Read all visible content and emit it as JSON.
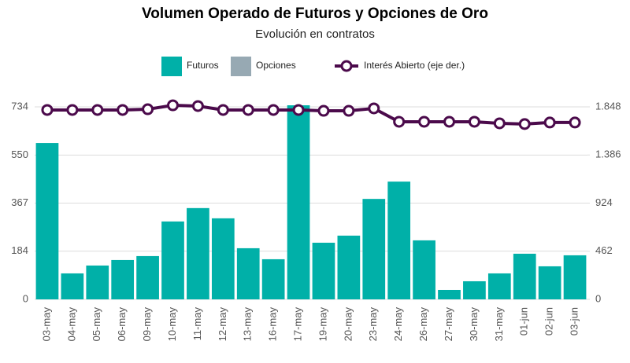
{
  "chart_data": {
    "type": "bar_line",
    "title": "Volumen Operado de Futuros y Opciones de Oro",
    "subtitle": "Evolución en contratos",
    "categories": [
      "03-may",
      "04-may",
      "05-may",
      "06-may",
      "09-may",
      "10-may",
      "11-may",
      "12-may",
      "13-may",
      "16-may",
      "17-may",
      "19-may",
      "20-may",
      "23-may",
      "24-may",
      "26-may",
      "27-may",
      "30-may",
      "31-may",
      "01-jun",
      "02-jun",
      "03-jun"
    ],
    "series": [
      {
        "name": "Futuros",
        "type": "bar",
        "color": "#00b0a8",
        "values": [
          596,
          99,
          129,
          150,
          165,
          297,
          348,
          309,
          195,
          153,
          740,
          216,
          243,
          383,
          449,
          225,
          36,
          69,
          99,
          174,
          126,
          168
        ]
      },
      {
        "name": "Opciones",
        "type": "bar",
        "color": "#97a9b3",
        "values": [
          0,
          0,
          0,
          0,
          0,
          0,
          0,
          0,
          0,
          0,
          0,
          0,
          0,
          0,
          0,
          0,
          0,
          0,
          0,
          0,
          0,
          0
        ]
      },
      {
        "name": "Interés Abierto (eje der.)",
        "type": "line",
        "axis": "y2",
        "color": "#4b0a4b",
        "values": [
          1818,
          1818,
          1818,
          1818,
          1825,
          1863,
          1856,
          1818,
          1818,
          1818,
          1818,
          1810,
          1810,
          1833,
          1705,
          1705,
          1705,
          1705,
          1690,
          1683,
          1698,
          1698
        ]
      }
    ],
    "ylim": [
      0,
      734
    ],
    "yticks": [
      0,
      184,
      367,
      550,
      734
    ],
    "y2lim": [
      0,
      1848
    ],
    "y2ticks": [
      0,
      462,
      924,
      {
        "value": 1386,
        "label": "1.386"
      },
      {
        "value": 1848,
        "label": "1.848"
      }
    ],
    "grid": true,
    "legend": "top"
  }
}
